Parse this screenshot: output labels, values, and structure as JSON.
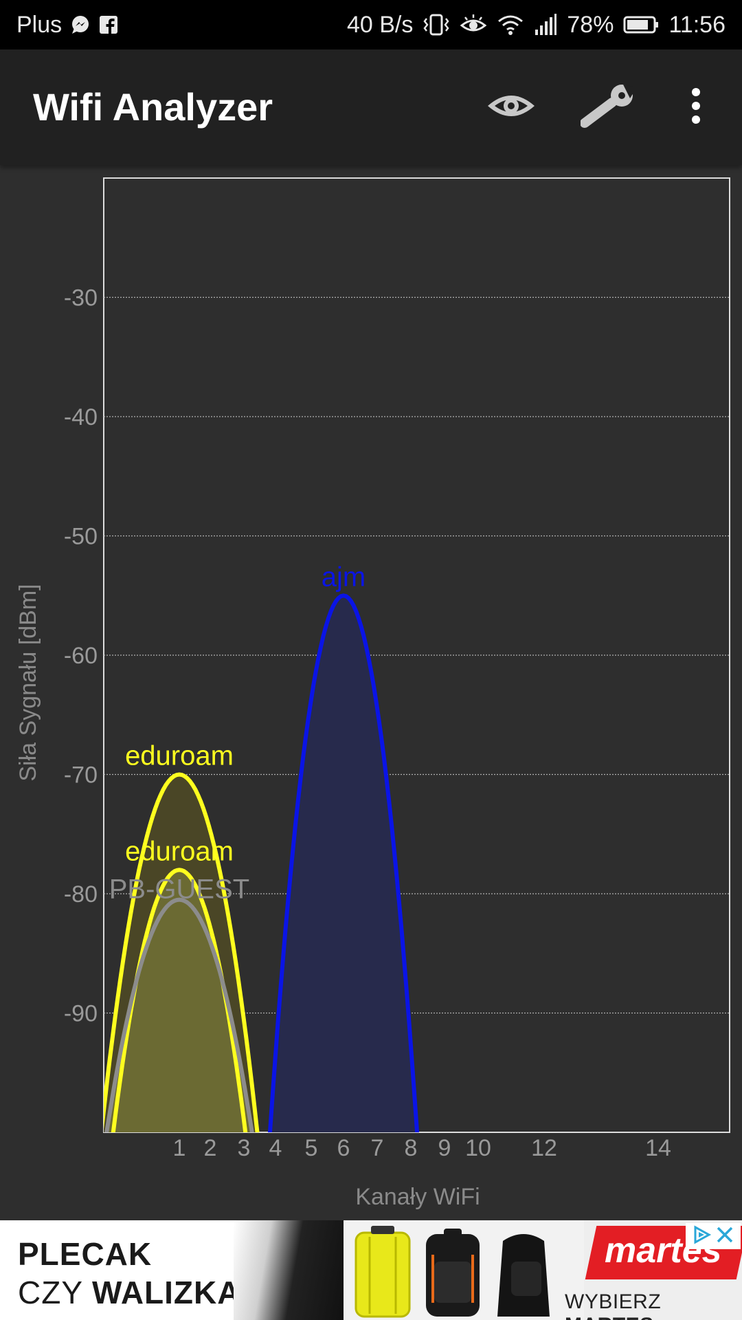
{
  "status_bar": {
    "carrier": "Plus",
    "speed": "40 B/s",
    "battery": "78%",
    "time": "11:56"
  },
  "app_bar": {
    "title": "Wifi Analyzer",
    "actions": [
      "eye-icon",
      "wrench-icon",
      "overflow-menu-icon"
    ]
  },
  "chart_data": {
    "type": "area",
    "ylabel": "Siła Sygnału [dBm]",
    "xlabel": "Kanały WiFi",
    "ylim": [
      -100,
      -20
    ],
    "y_ticks": [
      -30,
      -40,
      -50,
      -60,
      -70,
      -80,
      -90
    ],
    "x_ticks": [
      {
        "value": 1,
        "label": "1"
      },
      {
        "value": 2,
        "label": "2"
      },
      {
        "value": 3,
        "label": "3"
      },
      {
        "value": 4,
        "label": "4"
      },
      {
        "value": 5,
        "label": "5"
      },
      {
        "value": 6,
        "label": "6"
      },
      {
        "value": 7,
        "label": "7"
      },
      {
        "value": 8,
        "label": "8"
      },
      {
        "value": 9,
        "label": "9"
      },
      {
        "value": 10,
        "label": "10"
      },
      {
        "value": 12,
        "label": "12"
      },
      {
        "value": 14,
        "label": "14"
      }
    ],
    "grid": true,
    "series": [
      {
        "name": "eduroam",
        "channel": 1,
        "signal_dbm": -70,
        "color": "#ffff1f",
        "fill": "#4a4626"
      },
      {
        "name": "eduroam",
        "channel": 1,
        "signal_dbm": -78,
        "color": "#ffff1f",
        "fill": "#6b6a33"
      },
      {
        "name": "PB-GUEST",
        "channel": 1,
        "signal_dbm": -80.5,
        "color": "#8c8c8c",
        "fill": "#6b6a33"
      },
      {
        "name": "ajm",
        "channel": 6,
        "signal_dbm": -55,
        "color": "#0a14e6",
        "fill": "#272a4c"
      }
    ]
  },
  "ad": {
    "headline_1": "PLECAK",
    "headline_2_pre": "CZY ",
    "headline_2_bold": "WALIZKA?",
    "brand": "martes",
    "cta_pre": "WYBIERZ ",
    "cta_bold": "MARTES"
  },
  "colors": {
    "background": "#2e2e2e",
    "app_bar": "#212121",
    "status_bar": "#000000",
    "axis_text": "#9a9a9a"
  }
}
